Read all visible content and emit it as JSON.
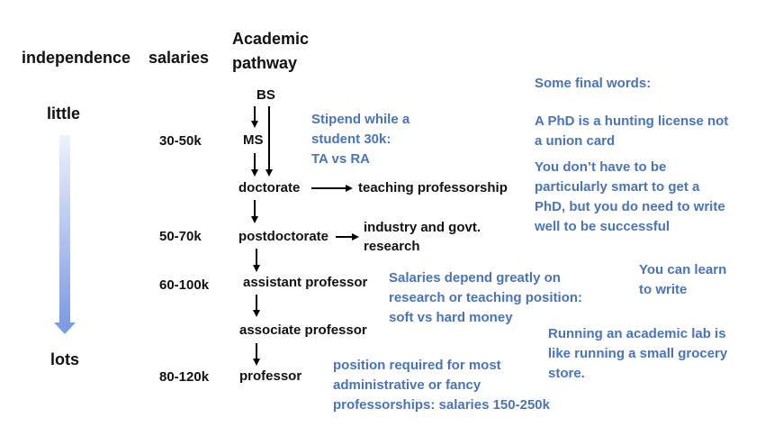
{
  "header": {
    "independence": "independence",
    "salaries": "salaries",
    "academic_line1": "Academic",
    "academic_line2": "pathway"
  },
  "scale": {
    "top": "little",
    "bottom": "lots"
  },
  "pathway": {
    "bs": "BS",
    "ms": "MS",
    "doctorate": "doctorate",
    "teaching": "teaching professorship",
    "postdoc": "postdoctorate",
    "industry_line1": "industry and govt.",
    "industry_line2": "research",
    "assistant": "assistant professor",
    "associate": "associate professor",
    "professor": "professor"
  },
  "salary_labels": {
    "ms": "30-50k",
    "postdoc": "50-70k",
    "assistant": "60-100k",
    "professor": "80-120k"
  },
  "notes": {
    "stipend": [
      "Stipend while a",
      "student 30k:",
      "TA vs RA"
    ],
    "salaries_depend": [
      "Salaries depend greatly on",
      "research or teaching position:",
      "soft vs hard money"
    ],
    "position_required": [
      "position required for most",
      "administrative or fancy",
      "professorships: salaries 150-250k"
    ],
    "final_title": "Some final words:",
    "hunting": [
      "A PhD is a hunting license not",
      "a union card"
    ],
    "smart": [
      "You don’t have to be",
      "particularly smart to get a",
      "PhD, but you do need to write",
      "well to be successful"
    ],
    "learn": [
      "You can learn",
      "to write"
    ],
    "lab": [
      "Running an academic lab is",
      "like running a small grocery",
      "store."
    ]
  },
  "colors": {
    "accent_text": "#4a74b8",
    "gradient_top": "#eef2fb",
    "gradient_bottom": "#7f9ce3"
  }
}
